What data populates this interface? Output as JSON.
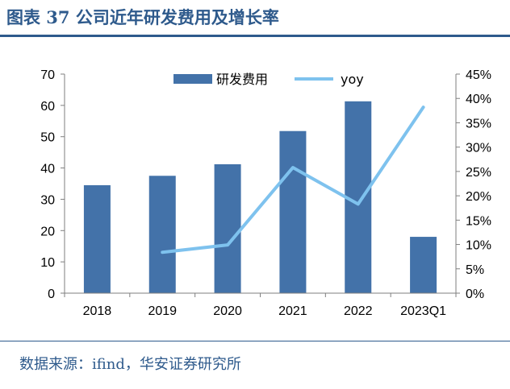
{
  "header": {
    "title": "图表 37 公司近年研发费用及增长率"
  },
  "footer": {
    "source": "数据来源：ifind，华安证券研究所"
  },
  "chart_data": {
    "type": "bar",
    "categories": [
      "2018",
      "2019",
      "2020",
      "2021",
      "2022",
      "2023Q1"
    ],
    "series": [
      {
        "name": "研发费用",
        "type": "bar",
        "axis": "left",
        "color": "#4372a9",
        "values": [
          34.5,
          37.5,
          41.2,
          51.8,
          61.3,
          18.0
        ]
      },
      {
        "name": "yoy",
        "type": "line",
        "axis": "right",
        "color": "#7ec2ee",
        "values": [
          null,
          8.4,
          9.9,
          25.8,
          18.3,
          38.2
        ]
      }
    ],
    "y_left": {
      "range": [
        0,
        70
      ],
      "ticks": [
        "0",
        "10",
        "20",
        "30",
        "40",
        "50",
        "60",
        "70"
      ]
    },
    "y_right": {
      "range": [
        0,
        45
      ],
      "ticks": [
        "0%",
        "5%",
        "10%",
        "15%",
        "20%",
        "25%",
        "30%",
        "35%",
        "40%",
        "45%"
      ]
    },
    "grid": false,
    "legend_position": "top-center"
  }
}
